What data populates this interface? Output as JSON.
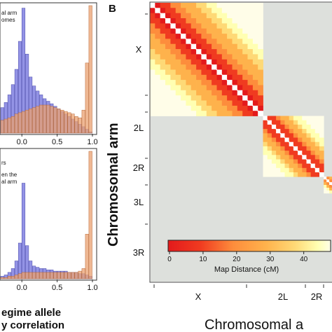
{
  "panel_b_label": "B",
  "chart_data": [
    {
      "type": "bar",
      "panel": "A-top",
      "legend": [
        "al arm",
        "omes"
      ],
      "xticks": [
        "0.0",
        "0.5",
        "1.0"
      ],
      "xlim": [
        -0.3,
        1.05
      ],
      "categories": [
        -0.3,
        -0.25,
        -0.2,
        -0.15,
        -0.1,
        -0.05,
        0.0,
        0.05,
        0.1,
        0.15,
        0.2,
        0.25,
        0.3,
        0.35,
        0.4,
        0.45,
        0.5,
        0.55,
        0.6,
        0.65,
        0.7,
        0.75,
        0.8,
        0.85,
        0.9,
        0.95
      ],
      "series": [
        {
          "color": "#8080e0",
          "values": [
            0.2,
            0.24,
            0.3,
            0.38,
            0.5,
            0.72,
            0.98,
            0.62,
            0.44,
            0.37,
            0.33,
            0.3,
            0.27,
            0.25,
            0.23,
            0.21,
            0.19,
            0.17,
            0.15,
            0.13,
            0.11,
            0.09,
            0.07,
            0.05,
            0.03,
            0.01
          ]
        },
        {
          "color": "#e9a070",
          "values": [
            0.1,
            0.11,
            0.12,
            0.13,
            0.15,
            0.16,
            0.17,
            0.18,
            0.19,
            0.2,
            0.21,
            0.22,
            0.22,
            0.22,
            0.21,
            0.2,
            0.19,
            0.18,
            0.17,
            0.16,
            0.15,
            0.13,
            0.12,
            0.18,
            0.55,
            1.0
          ]
        }
      ]
    },
    {
      "type": "bar",
      "panel": "A-bottom",
      "legend": [
        "rs",
        "en the",
        "al arm"
      ],
      "xticks": [
        "0.0",
        "0.5",
        "1.0"
      ],
      "xlim": [
        -0.3,
        1.05
      ],
      "categories": [
        -0.3,
        -0.25,
        -0.2,
        -0.15,
        -0.1,
        -0.05,
        0.0,
        0.05,
        0.1,
        0.15,
        0.2,
        0.25,
        0.3,
        0.35,
        0.4,
        0.45,
        0.5,
        0.55,
        0.6,
        0.65,
        0.7,
        0.75,
        0.8,
        0.85,
        0.9,
        0.95
      ],
      "series": [
        {
          "color": "#8080e0",
          "values": [
            0.02,
            0.03,
            0.05,
            0.08,
            0.14,
            0.28,
            0.75,
            0.26,
            0.14,
            0.1,
            0.09,
            0.08,
            0.08,
            0.07,
            0.07,
            0.06,
            0.06,
            0.06,
            0.06,
            0.05,
            0.05,
            0.05,
            0.04,
            0.04,
            0.03,
            0.02
          ]
        },
        {
          "color": "#e9a070",
          "values": [
            0.01,
            0.01,
            0.02,
            0.02,
            0.03,
            0.04,
            0.05,
            0.05,
            0.05,
            0.05,
            0.05,
            0.05,
            0.05,
            0.05,
            0.05,
            0.05,
            0.05,
            0.05,
            0.05,
            0.05,
            0.05,
            0.05,
            0.06,
            0.08,
            0.35,
            1.0
          ]
        }
      ],
      "xlabel_line1": "egime allele",
      "xlabel_line2": "y correlation"
    },
    {
      "type": "heatmap",
      "panel": "B",
      "ylabel": "Chromosomal arm",
      "xlabel": "Chromosomal a",
      "arms": [
        "X",
        "2L",
        "2R",
        "3L",
        "3R"
      ],
      "x_arm_ticks": [
        "X",
        "2L",
        "2R"
      ],
      "arm_fraction": [
        0.41,
        0.22,
        0.06,
        0.1,
        0.21
      ],
      "colorbar": {
        "label": "Map Distance (cM)",
        "ticks": [
          0,
          10,
          20,
          30,
          40
        ],
        "range": [
          0,
          48
        ],
        "colors": [
          "#e31a1c",
          "#f03b20",
          "#fd8d3c",
          "#feb24c",
          "#fed976",
          "#ffffb2",
          "#ffffe0"
        ]
      },
      "background": "#dde0dc"
    }
  ]
}
